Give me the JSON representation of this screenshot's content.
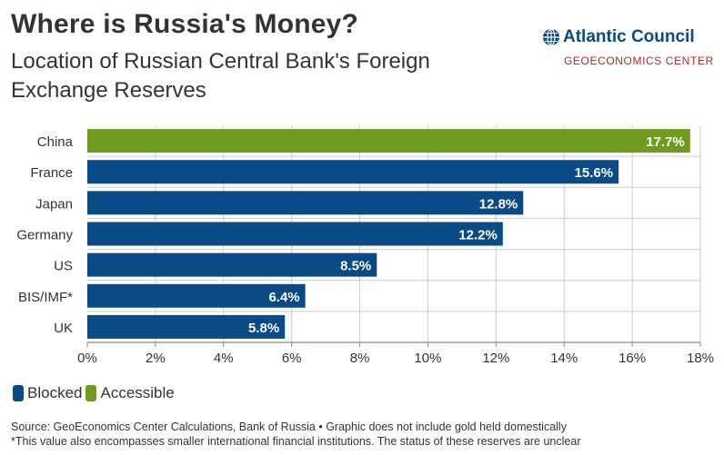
{
  "header": {
    "title": "Where is Russia's Money?",
    "subtitle": "Location of Russian Central Bank's Foreign Exchange Reserves"
  },
  "logo": {
    "name": "Atlantic Council",
    "sub": "GEOECONOMICS CENTER",
    "icon": "globe-icon"
  },
  "colors": {
    "blocked": "#0a4b87",
    "accessible": "#6f9c1f",
    "grid": "#cccccc",
    "axis": "#888888",
    "text": "#333333"
  },
  "legend": {
    "items": [
      {
        "label": "Blocked",
        "color": "#0a4b87"
      },
      {
        "label": "Accessible",
        "color": "#6f9c1f"
      }
    ]
  },
  "footer": {
    "source": "Source: GeoEconomics Center Calculations, Bank of Russia • Graphic does not include gold held domestically",
    "note": "*This value also encompasses smaller international financial institutions. The status of these reserves are unclear"
  },
  "chart_data": {
    "type": "bar",
    "orientation": "horizontal",
    "title": "Where is Russia's Money?",
    "subtitle": "Location of Russian Central Bank's Foreign Exchange Reserves",
    "xlabel": "",
    "ylabel": "",
    "xlim": [
      0,
      18
    ],
    "x_ticks": [
      0,
      2,
      4,
      6,
      8,
      10,
      12,
      14,
      16,
      18
    ],
    "x_tick_labels": [
      "0%",
      "2%",
      "4%",
      "6%",
      "8%",
      "10%",
      "12%",
      "14%",
      "16%",
      "18%"
    ],
    "grid": true,
    "legend_position": "bottom-left",
    "categories": [
      "China",
      "France",
      "Japan",
      "Germany",
      "US",
      "BIS/IMF*",
      "UK"
    ],
    "values": [
      17.7,
      15.6,
      12.8,
      12.2,
      8.5,
      6.4,
      5.8
    ],
    "value_labels": [
      "17.7%",
      "15.6%",
      "12.8%",
      "12.2%",
      "8.5%",
      "6.4%",
      "5.8%"
    ],
    "status": [
      "Accessible",
      "Blocked",
      "Blocked",
      "Blocked",
      "Blocked",
      "Blocked",
      "Blocked"
    ]
  }
}
